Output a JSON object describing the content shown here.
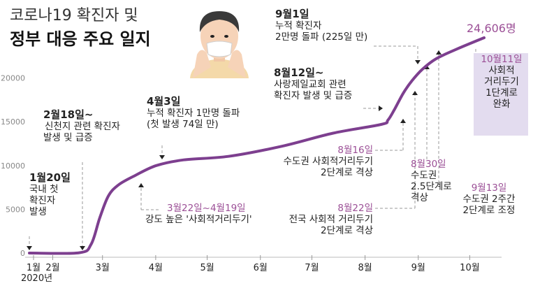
{
  "title": {
    "line1": "코로나19 확진자 및",
    "line2": "정부 대응 주요 일지"
  },
  "chart_data": {
    "type": "line",
    "unit": "명",
    "xlabel": "",
    "ylabel": "",
    "x_ticks": [
      "1월",
      "2월",
      "3월",
      "4월",
      "5월",
      "6월",
      "7월",
      "8월",
      "9월",
      "10월"
    ],
    "x_year": "2020년",
    "y_ticks": [
      0,
      5000,
      10000,
      15000,
      20000
    ],
    "ylim": [
      0,
      25000
    ],
    "grid": false,
    "series": [
      {
        "x": [
          "2020-01-20",
          "2020-02-18",
          "2020-02-25",
          "2020-03-01",
          "2020-03-06",
          "2020-03-12",
          "2020-03-22",
          "2020-04-03",
          "2020-04-19",
          "2020-05-15",
          "2020-06-15",
          "2020-07-15",
          "2020-08-12",
          "2020-08-16",
          "2020-08-20",
          "2020-08-25",
          "2020-08-30",
          "2020-09-05",
          "2020-09-13",
          "2020-09-25",
          "2020-10-11"
        ],
        "y": [
          1,
          30,
          1000,
          4000,
          6500,
          7800,
          8900,
          10000,
          10650,
          11050,
          12200,
          13700,
          14700,
          15200,
          16500,
          18300,
          19700,
          21000,
          22200,
          23300,
          24606
        ]
      }
    ],
    "final_label": "24,606명"
  },
  "annotations": {
    "jan20": {
      "date": "1월20일",
      "lines": [
        "국내 첫",
        "확진자",
        "발생"
      ]
    },
    "feb18": {
      "date": "2월18일~",
      "lines": [
        "신천지 관련 확진자",
        "발생 및 급증"
      ]
    },
    "mar22": {
      "date": "3월22일~4월19일",
      "lines": [
        "강도 높은 '사회적거리두기'"
      ]
    },
    "apr3": {
      "date": "4월3일",
      "lines": [
        "누적 확진자 1만명 돌파",
        "(첫 발생 74일 만)"
      ]
    },
    "aug12": {
      "date": "8월12일~",
      "lines": [
        "사랑제일교회 관련",
        "확진자 발생 및 급증"
      ]
    },
    "aug16": {
      "date": "8월16일",
      "lines": [
        "수도권 사회적거리두기",
        "2단계로 격상"
      ]
    },
    "aug22": {
      "date": "8월22일",
      "lines": [
        "전국 사회적 거리두기",
        "2단계로 격상"
      ]
    },
    "aug30": {
      "date": "8월30일",
      "lines": [
        "수도권",
        "2.5단계로",
        "격상"
      ]
    },
    "sep1": {
      "date": "9월1일",
      "lines": [
        "누적 확진자",
        "2만명 돌파 (225일 만)"
      ]
    },
    "sep13": {
      "date": "9월13일",
      "lines": [
        "수도권 2주간",
        "2단계로 조정"
      ]
    },
    "oct11": {
      "date": "10월11일",
      "lines": [
        "사회적",
        "거리두기",
        "1단계로",
        "완화"
      ]
    }
  },
  "colors": {
    "line": "#7d3f8f",
    "accent": "#9b4f96",
    "highlight_box": "#e3dcef"
  },
  "illustration": "person-wearing-mask-icon"
}
